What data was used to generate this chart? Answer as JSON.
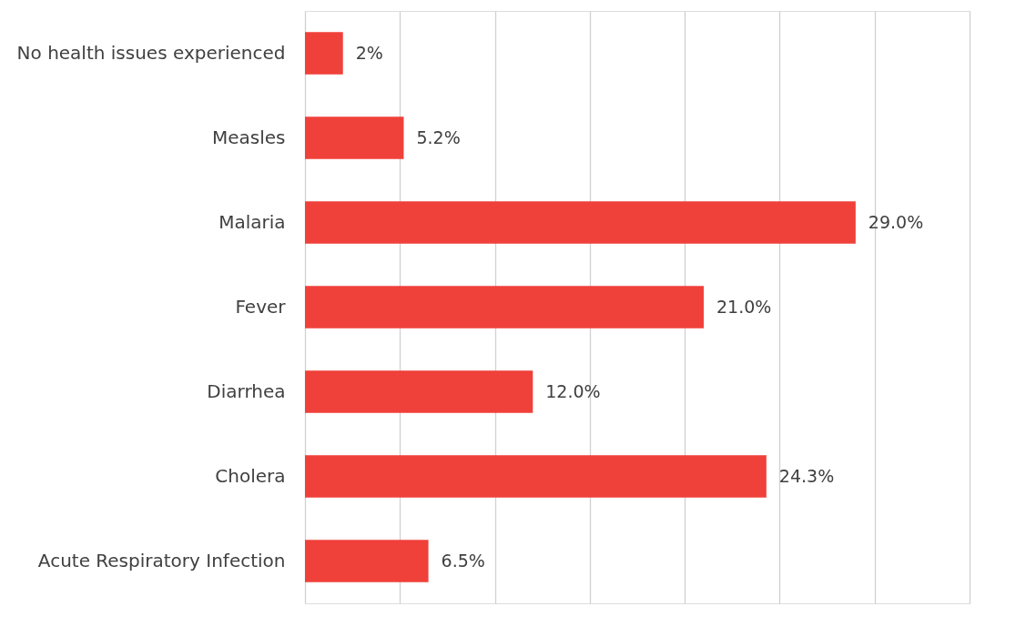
{
  "chart_data": {
    "type": "bar",
    "orientation": "horizontal",
    "categories": [
      "No health issues experienced",
      "Measles",
      "Malaria",
      "Fever",
      "Diarrhea",
      "Cholera",
      "Acute Respiratory Infection"
    ],
    "values": [
      2,
      5.2,
      29.0,
      21.0,
      12.0,
      24.3,
      6.5
    ],
    "value_labels": [
      "2%",
      "5.2%",
      "29.0%",
      "21.0%",
      "12.0%",
      "24.3%",
      "6.5%"
    ],
    "color": "#f0403a",
    "xlim": [
      0,
      35
    ],
    "xticks": [
      {
        "value": 0,
        "label": null
      },
      {
        "value": 5,
        "label": null
      },
      {
        "value": 10,
        "label": null
      },
      {
        "value": 15,
        "label": null
      },
      {
        "value": 20,
        "label": null
      },
      {
        "value": 25,
        "label": null
      },
      {
        "value": 30,
        "label": null
      },
      {
        "value": 35,
        "label": null
      }
    ],
    "grid": "x",
    "tick_labels": "y"
  }
}
